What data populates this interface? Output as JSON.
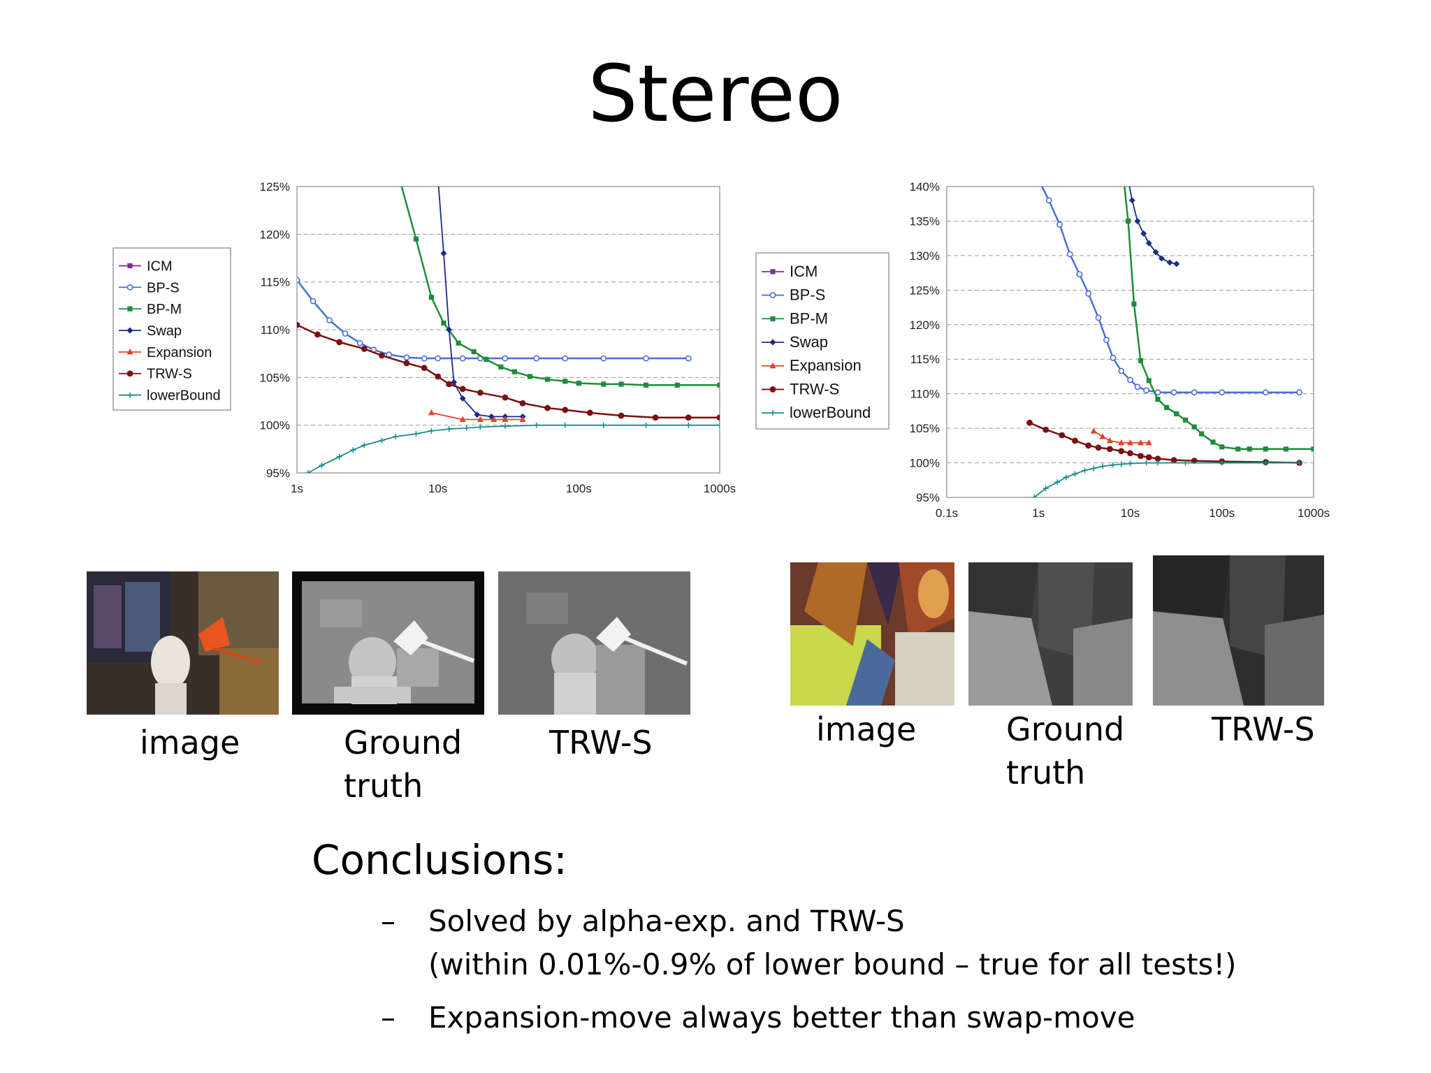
{
  "slide": {
    "title": "Stereo",
    "conclusions_title": "Conclusions:",
    "bullets": [
      {
        "dash": "–",
        "lines": [
          "Solved by alpha-exp. and TRW-S",
          "(within 0.01%-0.9% of lower bound – true for all tests!)"
        ]
      },
      {
        "dash": "–",
        "lines": [
          "Expansion-move always better than swap-move"
        ]
      }
    ]
  },
  "left_group": {
    "captions": {
      "image": "image",
      "ground_truth": [
        "Ground",
        "truth"
      ],
      "trws": "TRW-S"
    }
  },
  "right_group": {
    "captions": {
      "image": "image",
      "ground_truth": [
        "Ground",
        "truth"
      ],
      "trws": "TRW-S"
    }
  },
  "colors": {
    "ICM": "#7b3294",
    "BP-S": "#4a6fd8",
    "BP-M": "#1e8c3a",
    "Swap": "#1c2a8a",
    "Expansion": "#e8402a",
    "TRW-S": "#7a1010",
    "lowerBound": "#1a8a8a"
  },
  "chart_data": [
    {
      "type": "line",
      "x_scale": "log",
      "xlim": [
        1,
        1000
      ],
      "ylim": [
        95,
        125
      ],
      "yticks": [
        "95%",
        "100%",
        "105%",
        "110%",
        "115%",
        "120%",
        "125%"
      ],
      "xticks": [
        "1s",
        "10s",
        "100s",
        "1000s"
      ],
      "legend": [
        "ICM",
        "BP-S",
        "BP-M",
        "Swap",
        "Expansion",
        "TRW-S",
        "lowerBound"
      ],
      "legend_position": "left",
      "grid": "dashed horizontal",
      "series": [
        {
          "name": "BP-S",
          "marker": "circle",
          "x": [
            1,
            1.3,
            1.7,
            2.2,
            2.8,
            3.5,
            4.5,
            6,
            8,
            10,
            15,
            20,
            30,
            50,
            80,
            150,
            300,
            600
          ],
          "y": [
            115.2,
            113.0,
            111.0,
            109.6,
            108.6,
            107.9,
            107.4,
            107.1,
            107.0,
            107.0,
            107.0,
            107.0,
            107.0,
            107.0,
            107.0,
            107.0,
            107.0,
            107.0
          ]
        },
        {
          "name": "BP-M",
          "marker": "square",
          "x": [
            5.3,
            7,
            9,
            11,
            14,
            18,
            22,
            28,
            35,
            45,
            60,
            80,
            100,
            150,
            200,
            300,
            500,
            1000
          ],
          "y": [
            126,
            119.5,
            113.4,
            110.7,
            108.6,
            107.7,
            106.9,
            106.1,
            105.6,
            105.1,
            104.8,
            104.6,
            104.4,
            104.3,
            104.3,
            104.2,
            104.2,
            104.2
          ]
        },
        {
          "name": "Swap",
          "marker": "diamond",
          "x": [
            10,
            11,
            12,
            13,
            15,
            19,
            24,
            30,
            40
          ],
          "y": [
            126,
            118,
            110,
            104.5,
            102.8,
            101.1,
            100.9,
            100.9,
            100.9
          ]
        },
        {
          "name": "Expansion",
          "marker": "triangle",
          "x": [
            9,
            15,
            20,
            25,
            30,
            40
          ],
          "y": [
            101.3,
            100.6,
            100.6,
            100.6,
            100.6,
            100.6
          ]
        },
        {
          "name": "TRW-S",
          "marker": "circle",
          "x": [
            1,
            1.4,
            2,
            3,
            4,
            6,
            8,
            10,
            12,
            15,
            20,
            30,
            40,
            60,
            80,
            120,
            200,
            350,
            600,
            1000
          ],
          "y": [
            110.5,
            109.5,
            108.7,
            108.0,
            107.3,
            106.5,
            106.0,
            105.1,
            104.3,
            103.8,
            103.4,
            102.9,
            102.3,
            101.8,
            101.6,
            101.3,
            101.0,
            100.8,
            100.8,
            100.8
          ]
        },
        {
          "name": "lowerBound",
          "marker": "plus",
          "x": [
            1.2,
            1.5,
            2,
            2.5,
            3,
            4,
            5,
            7,
            9,
            12,
            16,
            20,
            30,
            50,
            80,
            150,
            300,
            600,
            1000
          ],
          "y": [
            95,
            95.8,
            96.7,
            97.4,
            97.9,
            98.4,
            98.8,
            99.1,
            99.4,
            99.6,
            99.7,
            99.8,
            99.9,
            100,
            100,
            100,
            100,
            100,
            100
          ]
        }
      ]
    },
    {
      "type": "line",
      "x_scale": "log",
      "xlim": [
        0.1,
        1000
      ],
      "ylim": [
        95,
        140
      ],
      "yticks": [
        "95%",
        "100%",
        "105%",
        "110%",
        "115%",
        "120%",
        "125%",
        "130%",
        "135%",
        "140%"
      ],
      "xticks": [
        "0.1s",
        "1s",
        "10s",
        "100s",
        "1000s"
      ],
      "legend": [
        "ICM",
        "BP-S",
        "BP-M",
        "Swap",
        "Expansion",
        "TRW-S",
        "lowerBound"
      ],
      "legend_position": "left",
      "grid": "dashed horizontal",
      "series": [
        {
          "name": "BP-S",
          "marker": "circle",
          "x": [
            1,
            1.3,
            1.7,
            2.2,
            2.8,
            3.5,
            4.5,
            5.5,
            6.5,
            8,
            10,
            12,
            15,
            20,
            30,
            50,
            100,
            300,
            700
          ],
          "y": [
            141,
            138,
            134.5,
            130.2,
            127.3,
            124.5,
            121.0,
            117.8,
            115.2,
            113.3,
            112.0,
            111.0,
            110.5,
            110.2,
            110.2,
            110.2,
            110.2,
            110.2,
            110.2
          ]
        },
        {
          "name": "BP-M",
          "marker": "square",
          "x": [
            8.5,
            9.5,
            11,
            13,
            16,
            20,
            25,
            32,
            40,
            50,
            60,
            80,
            100,
            150,
            200,
            300,
            500,
            1000
          ],
          "y": [
            141,
            135,
            123,
            114.8,
            111.9,
            109.2,
            108.0,
            107.1,
            106.2,
            105.2,
            104.2,
            103.0,
            102.3,
            102.0,
            102.0,
            102.0,
            102.0,
            102.0
          ]
        },
        {
          "name": "Swap",
          "marker": "diamond",
          "x": [
            9.5,
            10.5,
            12,
            14,
            16,
            19,
            22,
            27,
            32
          ],
          "y": [
            141,
            138,
            135,
            133.2,
            131.8,
            130.5,
            129.6,
            129.0,
            128.8
          ]
        },
        {
          "name": "Expansion",
          "marker": "triangle",
          "x": [
            4,
            5,
            6,
            8,
            10,
            13,
            16
          ],
          "y": [
            104.6,
            103.8,
            103.2,
            102.9,
            102.9,
            102.9,
            102.9
          ]
        },
        {
          "name": "TRW-S",
          "marker": "circle",
          "x": [
            0.8,
            1.2,
            1.8,
            2.5,
            3.5,
            4.5,
            6,
            8,
            10,
            13,
            16,
            20,
            30,
            50,
            100,
            300,
            700
          ],
          "y": [
            105.8,
            104.8,
            104.0,
            103.2,
            102.5,
            102.2,
            102.0,
            101.7,
            101.4,
            101.0,
            100.8,
            100.6,
            100.4,
            100.3,
            100.2,
            100.1,
            100.0
          ]
        },
        {
          "name": "lowerBound",
          "marker": "plus",
          "x": [
            0.9,
            1.2,
            1.6,
            2,
            2.5,
            3.2,
            4,
            5,
            6.5,
            8,
            10,
            15,
            20,
            40,
            100,
            300,
            700
          ],
          "y": [
            95,
            96.3,
            97.2,
            97.9,
            98.4,
            98.9,
            99.2,
            99.5,
            99.7,
            99.8,
            99.9,
            100,
            100,
            100,
            100,
            100,
            100
          ]
        }
      ]
    }
  ]
}
